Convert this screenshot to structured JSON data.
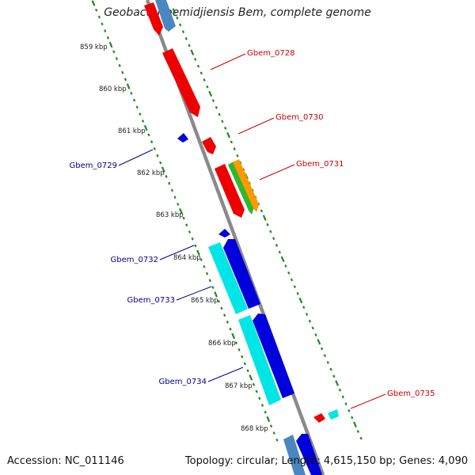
{
  "title": "Geobacter bemidjiensis Bem, complete genome",
  "footer": {
    "accession": "Accession: NC_011146",
    "summary": "Topology: circular; Length: 4,615,150 bp; Genes: 4,090"
  },
  "colors": {
    "backbone": "#8a8a8a",
    "tick_dots": "#1e8a1e",
    "forward_label": "#cc0000",
    "reverse_label": "#00008b",
    "red": "#ee0000",
    "blue": "#0000dd",
    "cyan": "#00e5e5",
    "steelblue": "#4a86c0",
    "green": "#2db82d",
    "orange": "#ff9900"
  },
  "ruler_labels": [
    "859 kbp",
    "860 kbp",
    "861 kbp",
    "862 kbp",
    "863 kbp",
    "864 kbp",
    "865 kbp",
    "866 kbp",
    "867 kbp",
    "868 kbp"
  ],
  "gene_labels": [
    {
      "text": "Gbem_0728",
      "strand": "forward"
    },
    {
      "text": "Gbem_0730",
      "strand": "forward"
    },
    {
      "text": "Gbem_0731",
      "strand": "forward"
    },
    {
      "text": "Gbem_0729",
      "strand": "reverse"
    },
    {
      "text": "Gbem_0732",
      "strand": "reverse"
    },
    {
      "text": "Gbem_0733",
      "strand": "reverse"
    },
    {
      "text": "Gbem_0734",
      "strand": "reverse"
    },
    {
      "text": "Gbem_0735",
      "strand": "forward"
    }
  ]
}
